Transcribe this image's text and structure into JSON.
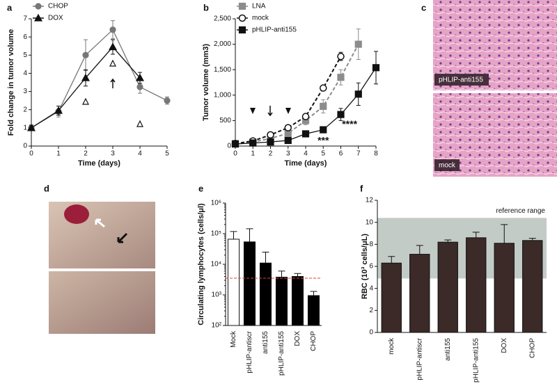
{
  "chart_data": [
    {
      "type": "line",
      "panel": "a",
      "x_label": "Time (days)",
      "y_label": "Fold change in tumor volume",
      "xlim": [
        0,
        5
      ],
      "xticks": [
        0,
        1,
        2,
        3,
        4,
        5
      ],
      "ylim": [
        0,
        7
      ],
      "yticks": [
        0,
        1,
        2,
        3,
        4,
        5,
        6,
        7
      ],
      "series": [
        {
          "name": "CHOP",
          "color": "#777777",
          "marker": "circle",
          "dashed": false,
          "x": [
            0,
            1,
            2,
            3,
            4,
            5
          ],
          "values": [
            1,
            1.9,
            5.0,
            6.4,
            3.25,
            2.5
          ],
          "errors": [
            0.15,
            0.3,
            0.85,
            0.5,
            0.35,
            0.2
          ]
        },
        {
          "name": "DOX",
          "color": "#111111",
          "marker": "triangle",
          "dashed": false,
          "x": [
            0,
            1,
            2,
            3,
            4
          ],
          "values": [
            1,
            1.95,
            3.75,
            5.45,
            3.75
          ],
          "errors": [
            0.15,
            0.25,
            0.45,
            0.4,
            0.3
          ]
        }
      ]
    },
    {
      "type": "line",
      "panel": "b",
      "x_label": "Time (days)",
      "y_label": "Tumor volume (mm3)",
      "xlim": [
        0,
        8
      ],
      "xticks": [
        0,
        1,
        2,
        3,
        4,
        5,
        6,
        7,
        8
      ],
      "ylim": [
        0,
        2500
      ],
      "yticks": [
        0,
        500,
        {
          "value": 1000,
          "label": "1,000"
        },
        {
          "value": 1500,
          "label": "1,500"
        },
        {
          "value": 2000,
          "label": "2,000"
        },
        {
          "value": 2500,
          "label": "2,500"
        }
      ],
      "series": [
        {
          "name": "LNA",
          "color": "#8c8c8c",
          "marker": "square",
          "dashed": true,
          "x": [
            0,
            1,
            2,
            3,
            4,
            5,
            6,
            7
          ],
          "values": [
            50,
            80,
            150,
            250,
            500,
            780,
            1350,
            2000
          ],
          "errors": [
            20,
            20,
            30,
            50,
            80,
            130,
            150,
            300
          ]
        },
        {
          "name": "mock",
          "color": "#111111",
          "marker": "open-circle",
          "dashed": true,
          "x": [
            0,
            1,
            2,
            3,
            4,
            5,
            6
          ],
          "values": [
            50,
            100,
            220,
            360,
            580,
            1140,
            1760
          ],
          "errors": [
            10,
            20,
            30,
            30,
            50,
            40,
            80
          ]
        },
        {
          "name": "pHLIP-anti155",
          "color": "#111111",
          "marker": "square",
          "dashed": false,
          "x": [
            0,
            1,
            2,
            3,
            4,
            5,
            6,
            7,
            8
          ],
          "values": [
            40,
            60,
            80,
            110,
            240,
            320,
            620,
            1020,
            1540
          ],
          "errors": [
            10,
            10,
            15,
            20,
            50,
            60,
            120,
            220,
            320
          ]
        }
      ],
      "annotations": [
        {
          "text": "***",
          "x": 5,
          "y": 100
        },
        {
          "text": "****",
          "x": 6.5,
          "y": 420
        }
      ]
    },
    {
      "type": "bar",
      "panel": "e",
      "y_label": "Circulating lymphocytes (cells/μl)",
      "log_scale": true,
      "ylim": [
        100,
        1000000
      ],
      "yticks": [
        {
          "value": 100,
          "label": "10²"
        },
        {
          "value": 1000,
          "label": "10³"
        },
        {
          "value": 10000,
          "label": "10⁴"
        },
        {
          "value": 100000,
          "label": "10⁵"
        },
        {
          "value": 1000000,
          "label": "10⁶"
        }
      ],
      "categories": [
        "Mock",
        "pHLIP-antiscr",
        "anti155",
        "pHLIP-anti155",
        "DOX",
        "CHOP"
      ],
      "values": [
        66000,
        54000,
        11000,
        3800,
        4000,
        950
      ],
      "errors": [
        52000,
        91000,
        14000,
        2200,
        1000,
        350
      ],
      "colors": [
        "#ffffff",
        "#000000",
        "#000000",
        "#000000",
        "#000000",
        "#000000"
      ],
      "reference_line": 3500,
      "reference_color": "#e0403a"
    },
    {
      "type": "bar",
      "panel": "f",
      "y_label": "RBC (10³ cells/μL)",
      "ylim": [
        0,
        12
      ],
      "yticks": [
        0,
        2,
        4,
        6,
        8,
        10,
        12
      ],
      "categories": [
        "mock",
        "pHLIP-antiscr",
        "anti155",
        "pHLIP-anti155",
        "DOX",
        "CHOP"
      ],
      "values": [
        6.3,
        7.1,
        8.2,
        8.6,
        8.1,
        8.35
      ],
      "errors": [
        0.6,
        0.8,
        0.2,
        0.5,
        1.7,
        0.2
      ],
      "color": "#3b2a28",
      "reference_range": [
        4.9,
        10.4
      ],
      "reference_label": "reference range",
      "reference_color": "#c3cbc6"
    }
  ],
  "figure_panels": {
    "c": {
      "label": "c",
      "captions": [
        "pHLIP-anti155",
        "mock"
      ]
    },
    "d": {
      "label": "d"
    }
  }
}
